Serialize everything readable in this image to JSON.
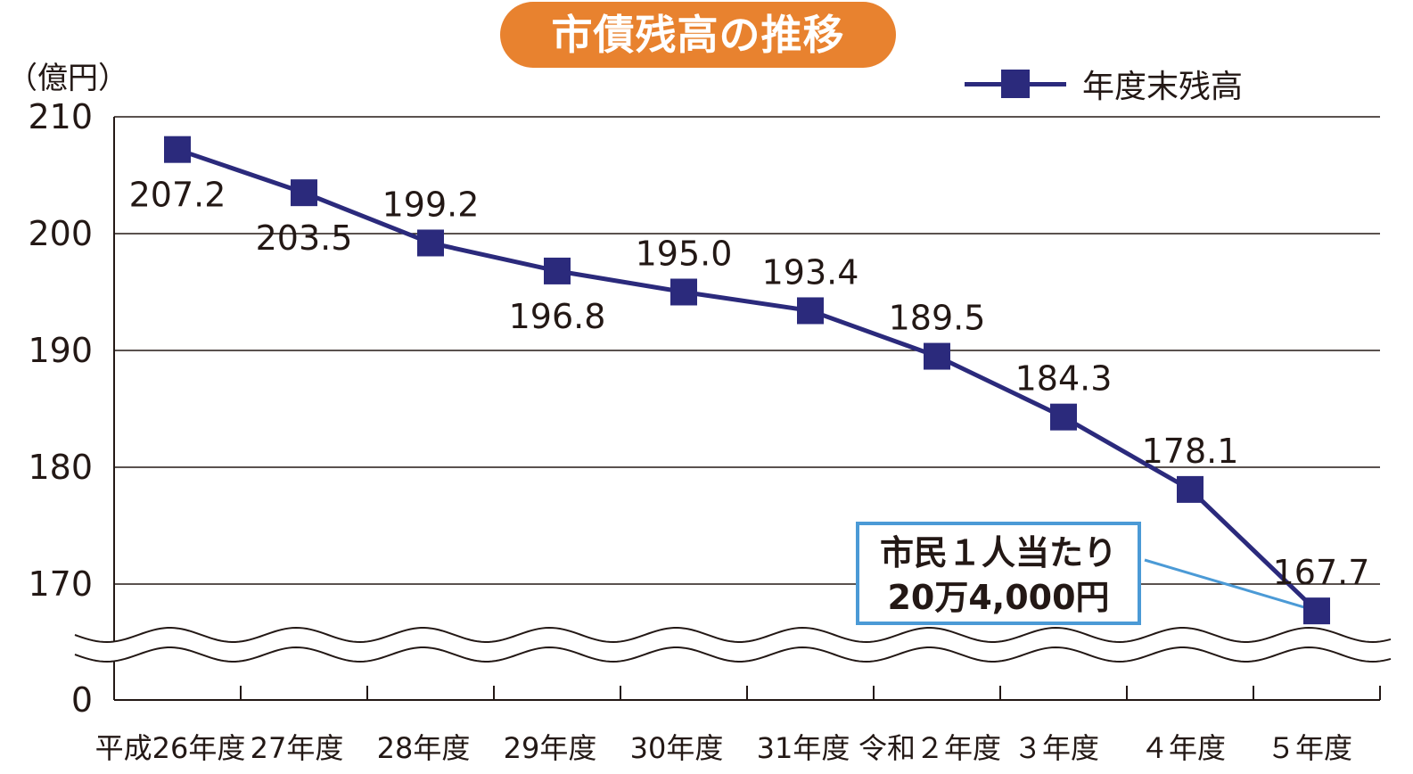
{
  "chart_data": {
    "type": "line",
    "title": "市債残高の推移",
    "ylabel": "（億円）",
    "xlabel": "",
    "categories": [
      "平成26年度",
      "27年度",
      "28年度",
      "29年度",
      "30年度",
      "31年度",
      "令和２年度",
      "３年度",
      "４年度",
      "５年度"
    ],
    "series": [
      {
        "name": "年度末残高",
        "values": [
          207.2,
          203.5,
          199.2,
          196.8,
          195.0,
          193.4,
          189.5,
          184.3,
          178.1,
          167.7
        ],
        "color": "#2b2a7c"
      }
    ],
    "data_labels": [
      "207.2",
      "203.5",
      "199.2",
      "196.8",
      "195.0",
      "193.4",
      "189.5",
      "184.3",
      "178.1",
      "167.7"
    ],
    "yticks": [
      210,
      200,
      190,
      180,
      170,
      0
    ],
    "ytick_labels": [
      "210",
      "200",
      "190",
      "180",
      "170",
      "0"
    ],
    "ylim": [
      170,
      210
    ],
    "axis_break": "between 0 and 170",
    "grid": true,
    "legend": "top-right",
    "annotation": {
      "line1": "市民１人当たり",
      "line2": "20万4,000円",
      "target": "５年度",
      "border_color": "#4b9ad6"
    },
    "title_bg_color": "#e8822f"
  }
}
